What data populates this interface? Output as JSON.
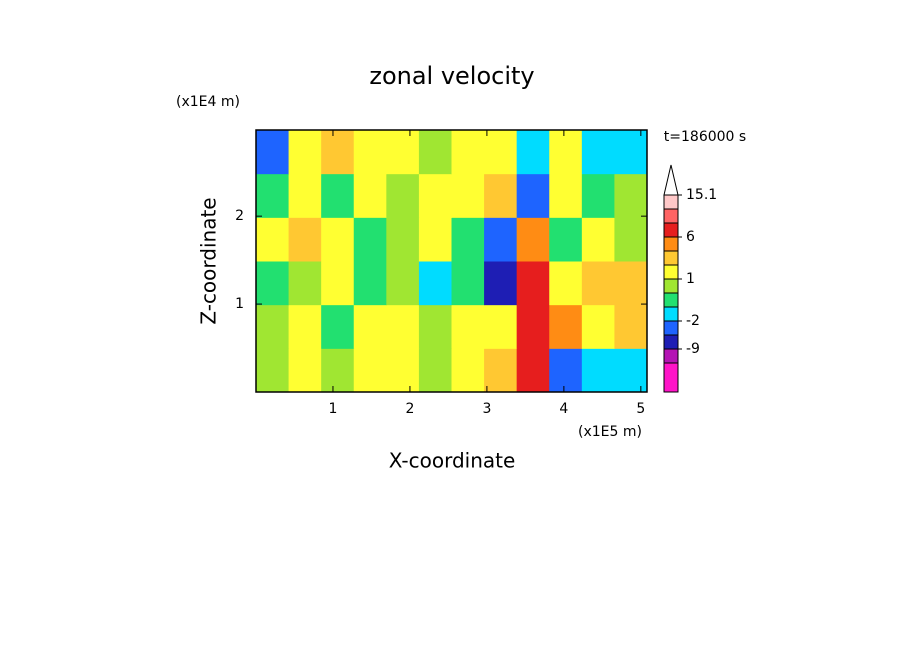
{
  "chart_data": {
    "type": "contour",
    "title": "zonal velocity",
    "x_label": "X-coordinate",
    "y_label": "Z-coordinate",
    "x_unit": "(x1E5 m)",
    "y_unit": "(x1E4 m)",
    "time_label": "t=186000 s",
    "xlim": [
      0,
      5.08
    ],
    "ylim": [
      0,
      2.98
    ],
    "xticks": [
      1,
      2,
      3,
      4,
      5
    ],
    "yticks": [
      1,
      2
    ],
    "field": [
      [
        0.5,
        1.5,
        0.5,
        1.5,
        1.5,
        0.5,
        1.5,
        2.5,
        7,
        -4,
        -1.5,
        -1.5
      ],
      [
        0.5,
        1.5,
        -0.5,
        1.5,
        1.5,
        0.5,
        1.5,
        1.5,
        7,
        4,
        1.5,
        2.5
      ],
      [
        -0.5,
        0.5,
        1.5,
        -0.5,
        0.5,
        -1.5,
        -0.5,
        -7,
        7,
        1.5,
        2.5,
        2.5
      ],
      [
        1.5,
        2.5,
        1.5,
        -0.5,
        0.5,
        1.5,
        -0.5,
        -4,
        4,
        -0.5,
        1.5,
        0.5
      ],
      [
        -0.5,
        1.5,
        -0.5,
        1.5,
        0.5,
        1.5,
        1.5,
        2.5,
        -4,
        1.5,
        -0.5,
        0.5
      ],
      [
        -4,
        1.5,
        2.5,
        1.5,
        1.5,
        0.5,
        1.5,
        1.5,
        -1.5,
        1.5,
        -1.5,
        -1.5
      ]
    ],
    "levels": [
      -12,
      -9,
      -6,
      -2,
      -1,
      0,
      1,
      2,
      3,
      6,
      9,
      12,
      15.1
    ],
    "colors": [
      "#ff14c8",
      "#b414b4",
      "#1e1eb4",
      "#1e64ff",
      "#00dcff",
      "#22e070",
      "#a0e632",
      "#ffff32",
      "#ffc832",
      "#ff8c14",
      "#e61e1e",
      "#ff6464",
      "#ffc8c8",
      "#ffffff"
    ],
    "colorbar_ticks": [
      15.1,
      6,
      1,
      -2,
      -9
    ]
  }
}
